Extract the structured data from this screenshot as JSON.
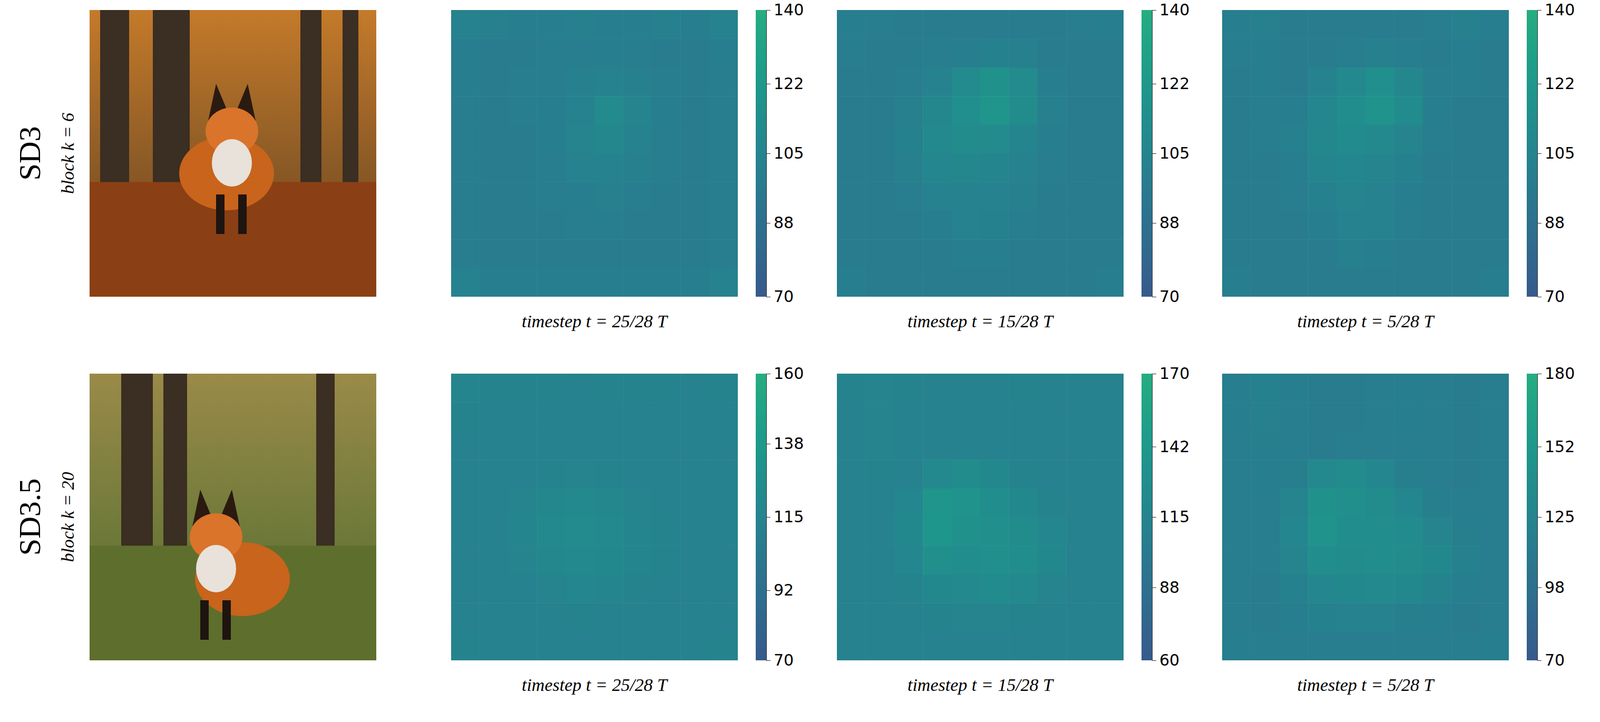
{
  "rows": [
    {
      "model": "SD3",
      "block": "block k = 6"
    },
    {
      "model": "SD3.5",
      "block": "block k = 20"
    }
  ],
  "chart_data": [
    {
      "type": "heatmap",
      "xlabel": "timestep t = 25/28 T",
      "colorbar": {
        "range": [
          70,
          140
        ],
        "ticks": [
          70,
          88,
          105,
          122,
          140
        ]
      },
      "cells": [
        [
          104,
          101,
          100,
          100,
          101,
          100,
          100,
          101,
          100,
          104
        ],
        [
          100,
          98,
          98,
          99,
          99,
          100,
          99,
          98,
          98,
          100
        ],
        [
          100,
          98,
          99,
          99,
          101,
          103,
          101,
          99,
          98,
          99
        ],
        [
          99,
          98,
          99,
          100,
          104,
          110,
          105,
          100,
          98,
          99
        ],
        [
          99,
          98,
          98,
          100,
          105,
          108,
          104,
          99,
          98,
          99
        ],
        [
          99,
          98,
          98,
          99,
          103,
          104,
          101,
          99,
          98,
          99
        ],
        [
          99,
          98,
          98,
          99,
          100,
          101,
          99,
          98,
          98,
          99
        ],
        [
          99,
          98,
          98,
          98,
          99,
          99,
          98,
          98,
          98,
          99
        ],
        [
          99,
          98,
          98,
          98,
          98,
          98,
          98,
          98,
          98,
          99
        ],
        [
          104,
          100,
          100,
          100,
          100,
          100,
          100,
          100,
          100,
          104
        ]
      ]
    },
    {
      "type": "heatmap",
      "xlabel": "timestep t = 15/28 T",
      "colorbar": {
        "range": [
          70,
          140
        ],
        "ticks": [
          70,
          88,
          105,
          122,
          140
        ]
      },
      "cells": [
        [
          100,
          99,
          98,
          98,
          98,
          98,
          98,
          98,
          99,
          100
        ],
        [
          99,
          97,
          98,
          99,
          100,
          102,
          101,
          98,
          97,
          98
        ],
        [
          98,
          97,
          99,
          104,
          110,
          116,
          110,
          100,
          97,
          98
        ],
        [
          98,
          97,
          101,
          108,
          114,
          120,
          112,
          101,
          97,
          98
        ],
        [
          98,
          97,
          102,
          109,
          112,
          110,
          106,
          100,
          97,
          98
        ],
        [
          98,
          97,
          101,
          107,
          108,
          106,
          103,
          99,
          97,
          98
        ],
        [
          98,
          97,
          99,
          103,
          104,
          103,
          101,
          98,
          97,
          98
        ],
        [
          98,
          97,
          98,
          100,
          103,
          102,
          99,
          98,
          97,
          98
        ],
        [
          98,
          97,
          97,
          98,
          100,
          100,
          98,
          97,
          97,
          98
        ],
        [
          100,
          98,
          98,
          98,
          98,
          98,
          98,
          98,
          98,
          100
        ]
      ]
    },
    {
      "type": "heatmap",
      "xlabel": "timestep t = 5/28 T",
      "colorbar": {
        "range": [
          70,
          140
        ],
        "ticks": [
          70,
          88,
          105,
          122,
          140
        ]
      },
      "cells": [
        [
          100,
          101,
          98,
          98,
          98,
          98,
          98,
          99,
          101,
          100
        ],
        [
          99,
          100,
          97,
          98,
          99,
          101,
          100,
          98,
          100,
          98
        ],
        [
          98,
          100,
          98,
          103,
          109,
          114,
          108,
          99,
          99,
          98
        ],
        [
          98,
          99,
          100,
          107,
          113,
          118,
          111,
          100,
          98,
          98
        ],
        [
          98,
          99,
          101,
          108,
          111,
          109,
          105,
          99,
          98,
          98
        ],
        [
          98,
          98,
          100,
          106,
          107,
          105,
          102,
          98,
          98,
          98
        ],
        [
          98,
          98,
          99,
          102,
          105,
          104,
          100,
          98,
          98,
          98
        ],
        [
          98,
          98,
          98,
          100,
          104,
          103,
          99,
          98,
          98,
          98
        ],
        [
          98,
          97,
          97,
          98,
          101,
          100,
          98,
          97,
          97,
          98
        ],
        [
          100,
          98,
          98,
          98,
          98,
          98,
          98,
          98,
          98,
          100
        ]
      ]
    },
    {
      "type": "heatmap",
      "xlabel": "timestep t = 25/28 T",
      "colorbar": {
        "range": [
          70,
          160
        ],
        "ticks": [
          70,
          92,
          115,
          138,
          160
        ]
      },
      "cells": [
        [
          116,
          114,
          114,
          114,
          113,
          114,
          114,
          114,
          113,
          114
        ],
        [
          114,
          112,
          113,
          113,
          112,
          113,
          112,
          113,
          112,
          113
        ],
        [
          113,
          112,
          113,
          113,
          113,
          113,
          112,
          113,
          112,
          113
        ],
        [
          113,
          112,
          113,
          114,
          115,
          114,
          113,
          113,
          112,
          113
        ],
        [
          113,
          113,
          115,
          118,
          120,
          118,
          115,
          113,
          112,
          113
        ],
        [
          113,
          113,
          116,
          120,
          122,
          120,
          116,
          114,
          113,
          113
        ],
        [
          113,
          112,
          115,
          118,
          120,
          119,
          116,
          114,
          113,
          113
        ],
        [
          113,
          112,
          113,
          115,
          117,
          116,
          114,
          113,
          112,
          113
        ],
        [
          113,
          112,
          112,
          113,
          114,
          113,
          113,
          112,
          112,
          113
        ],
        [
          114,
          113,
          113,
          113,
          113,
          113,
          113,
          113,
          113,
          114
        ]
      ]
    },
    {
      "type": "heatmap",
      "xlabel": "timestep t = 15/28 T",
      "colorbar": {
        "range": [
          60,
          170
        ],
        "ticks": [
          60,
          88,
          115,
          142,
          170
        ]
      },
      "cells": [
        [
          114,
          116,
          114,
          112,
          112,
          113,
          114,
          113,
          112,
          113
        ],
        [
          113,
          116,
          113,
          111,
          111,
          112,
          113,
          112,
          111,
          112
        ],
        [
          112,
          115,
          112,
          111,
          112,
          112,
          112,
          112,
          111,
          112
        ],
        [
          112,
          114,
          113,
          122,
          126,
          120,
          114,
          112,
          111,
          112
        ],
        [
          112,
          113,
          118,
          138,
          135,
          128,
          120,
          114,
          112,
          112
        ],
        [
          112,
          112,
          120,
          140,
          132,
          130,
          126,
          118,
          113,
          112
        ],
        [
          112,
          112,
          118,
          130,
          128,
          130,
          128,
          120,
          113,
          112
        ],
        [
          112,
          111,
          114,
          120,
          122,
          124,
          122,
          116,
          112,
          112
        ],
        [
          112,
          111,
          112,
          114,
          116,
          115,
          114,
          113,
          111,
          112
        ],
        [
          113,
          112,
          112,
          112,
          112,
          112,
          112,
          112,
          112,
          113
        ]
      ]
    },
    {
      "type": "heatmap",
      "xlabel": "timestep t = 5/28 T",
      "colorbar": {
        "range": [
          70,
          180
        ],
        "ticks": [
          70,
          98,
          125,
          152,
          180
        ]
      },
      "cells": [
        [
          117,
          120,
          116,
          114,
          114,
          115,
          116,
          115,
          114,
          115
        ],
        [
          116,
          119,
          115,
          114,
          114,
          115,
          116,
          115,
          114,
          115
        ],
        [
          115,
          118,
          115,
          114,
          115,
          115,
          115,
          115,
          114,
          115
        ],
        [
          115,
          116,
          118,
          132,
          136,
          128,
          118,
          115,
          114,
          115
        ],
        [
          115,
          115,
          125,
          142,
          140,
          136,
          128,
          118,
          115,
          115
        ],
        [
          115,
          115,
          128,
          145,
          138,
          137,
          134,
          126,
          118,
          115
        ],
        [
          115,
          115,
          126,
          138,
          136,
          137,
          136,
          130,
          120,
          115
        ],
        [
          115,
          114,
          120,
          128,
          130,
          132,
          130,
          124,
          116,
          115
        ],
        [
          115,
          114,
          116,
          120,
          122,
          121,
          118,
          116,
          114,
          115
        ],
        [
          116,
          115,
          115,
          115,
          115,
          115,
          115,
          115,
          115,
          116
        ]
      ]
    }
  ]
}
